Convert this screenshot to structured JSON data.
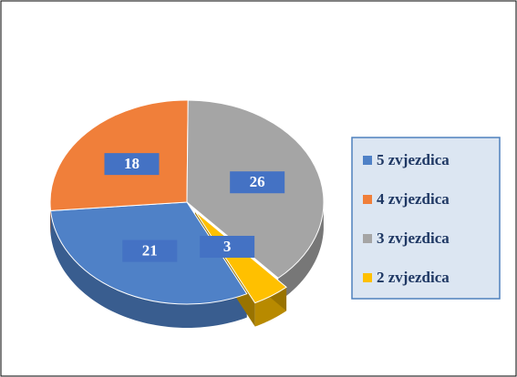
{
  "chart_data": {
    "type": "pie",
    "categories": [
      "5 zvjezdica",
      "4 zvjezdica",
      "3 zvjezdica",
      "2 zvjezdica"
    ],
    "values": [
      21,
      18,
      26,
      3
    ],
    "colors": [
      "#4f81c7",
      "#f07f3a",
      "#a5a5a5",
      "#ffc000"
    ],
    "legend": "right"
  }
}
